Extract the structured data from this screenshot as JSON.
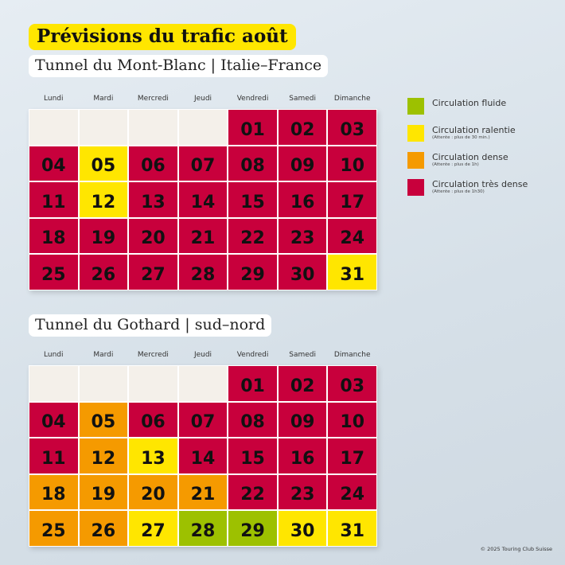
{
  "title": "Prévisions du trafic août",
  "colors": {
    "fluid": "#9dc100",
    "slow": "#ffe600",
    "dense": "#f59a00",
    "very_dense": "#c8003c",
    "empty": "#f4f0ea"
  },
  "weekdays": [
    "Lundi",
    "Mardi",
    "Mercredi",
    "Jeudi",
    "Vendredi",
    "Samedi",
    "Dimanche"
  ],
  "calendars": [
    {
      "subtitle": "Tunnel du Mont-Blanc | Italie–France",
      "days": [
        [
          "",
          "empty"
        ],
        [
          "",
          "empty"
        ],
        [
          "",
          "empty"
        ],
        [
          "",
          "empty"
        ],
        [
          "01",
          "very_dense"
        ],
        [
          "02",
          "very_dense"
        ],
        [
          "03",
          "very_dense"
        ],
        [
          "04",
          "very_dense"
        ],
        [
          "05",
          "slow"
        ],
        [
          "06",
          "very_dense"
        ],
        [
          "07",
          "very_dense"
        ],
        [
          "08",
          "very_dense"
        ],
        [
          "09",
          "very_dense"
        ],
        [
          "10",
          "very_dense"
        ],
        [
          "11",
          "very_dense"
        ],
        [
          "12",
          "slow"
        ],
        [
          "13",
          "very_dense"
        ],
        [
          "14",
          "very_dense"
        ],
        [
          "15",
          "very_dense"
        ],
        [
          "16",
          "very_dense"
        ],
        [
          "17",
          "very_dense"
        ],
        [
          "18",
          "very_dense"
        ],
        [
          "19",
          "very_dense"
        ],
        [
          "20",
          "very_dense"
        ],
        [
          "21",
          "very_dense"
        ],
        [
          "22",
          "very_dense"
        ],
        [
          "23",
          "very_dense"
        ],
        [
          "24",
          "very_dense"
        ],
        [
          "25",
          "very_dense"
        ],
        [
          "26",
          "very_dense"
        ],
        [
          "27",
          "very_dense"
        ],
        [
          "28",
          "very_dense"
        ],
        [
          "29",
          "very_dense"
        ],
        [
          "30",
          "very_dense"
        ],
        [
          "31",
          "slow"
        ]
      ]
    },
    {
      "subtitle": "Tunnel du Gothard | sud–nord",
      "days": [
        [
          "",
          "empty"
        ],
        [
          "",
          "empty"
        ],
        [
          "",
          "empty"
        ],
        [
          "",
          "empty"
        ],
        [
          "01",
          "very_dense"
        ],
        [
          "02",
          "very_dense"
        ],
        [
          "03",
          "very_dense"
        ],
        [
          "04",
          "very_dense"
        ],
        [
          "05",
          "dense"
        ],
        [
          "06",
          "very_dense"
        ],
        [
          "07",
          "very_dense"
        ],
        [
          "08",
          "very_dense"
        ],
        [
          "09",
          "very_dense"
        ],
        [
          "10",
          "very_dense"
        ],
        [
          "11",
          "very_dense"
        ],
        [
          "12",
          "dense"
        ],
        [
          "13",
          "slow"
        ],
        [
          "14",
          "very_dense"
        ],
        [
          "15",
          "very_dense"
        ],
        [
          "16",
          "very_dense"
        ],
        [
          "17",
          "very_dense"
        ],
        [
          "18",
          "dense"
        ],
        [
          "19",
          "dense"
        ],
        [
          "20",
          "dense"
        ],
        [
          "21",
          "dense"
        ],
        [
          "22",
          "very_dense"
        ],
        [
          "23",
          "very_dense"
        ],
        [
          "24",
          "very_dense"
        ],
        [
          "25",
          "dense"
        ],
        [
          "26",
          "dense"
        ],
        [
          "27",
          "slow"
        ],
        [
          "28",
          "fluid"
        ],
        [
          "29",
          "fluid"
        ],
        [
          "30",
          "slow"
        ],
        [
          "31",
          "slow"
        ]
      ]
    }
  ],
  "legend": [
    {
      "key": "fluid",
      "label": "Circulation fluide",
      "note": ""
    },
    {
      "key": "slow",
      "label": "Circulation ralentie",
      "note": "(Attente : plus de 30 min.)"
    },
    {
      "key": "dense",
      "label": "Circulation dense",
      "note": "(Attente : plus de 1h)"
    },
    {
      "key": "very_dense",
      "label": "Circulation très dense",
      "note": "(Attente : plus de 1h30)"
    }
  ],
  "footer": "© 2025 Touring Club Suisse"
}
